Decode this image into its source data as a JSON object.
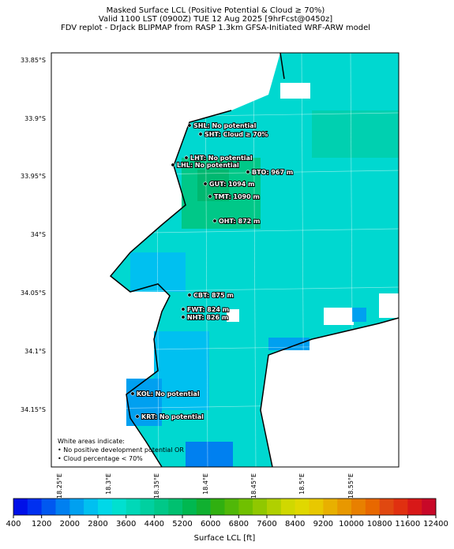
{
  "header": {
    "title": [
      "Masked Surface LCL (Positive Potential & Cloud ≥ 70%)",
      "Valid 1100 LST (0900Z) TUE 12 Aug 2025 [9hrFcst@0450z]",
      "FDV replot - DrJack BLIPMAP from RASP 1.3km GFSA-Initiated WRF-ARW model"
    ]
  },
  "map": {
    "lat_labels": [
      "33.85°S",
      "33.9°S",
      "33.95°S",
      "34°S",
      "34.05°S",
      "34.1°S",
      "34.15°S"
    ],
    "lon_labels": [
      "18.25°E",
      "18.3°E",
      "18.35°E",
      "18.4°E",
      "18.45°E",
      "18.5°E",
      "18.55°E"
    ],
    "stations": [
      "SHL: No potential",
      "SHT: Cloud ≥ 70%",
      "LHT: No potential",
      "LHL: No potential",
      "BTO: 967 m",
      "GUT: 1094 m",
      "TMT: 1090 m",
      "OHT: 872 m",
      "CBT: 875 m",
      "FWT: 824 m",
      "NHT: 826 m",
      "KOL: No potential",
      "KRT: No potential"
    ],
    "note": [
      "White areas indicate:",
      "• No positive development potential OR",
      "• Cloud percentage < 70%"
    ]
  },
  "colorbar": {
    "label": "Surface LCL [ft]",
    "lim": [
      400,
      12400
    ],
    "ticks": [
      400,
      1200,
      2000,
      2800,
      3600,
      4400,
      5200,
      6000,
      6800,
      7600,
      8400,
      9200,
      10000,
      10800,
      11600,
      12400
    ],
    "colors": [
      "#0010e8",
      "#0030f0",
      "#0058f0",
      "#0080f0",
      "#00a0f0",
      "#00c0f0",
      "#00d8e8",
      "#00e0d0",
      "#00d8b8",
      "#00d0a0",
      "#00c888",
      "#00c070",
      "#00b850",
      "#10b030",
      "#30b010",
      "#50b808",
      "#70c000",
      "#90c800",
      "#b0d000",
      "#d0d800",
      "#e0d800",
      "#e8c800",
      "#e8b000",
      "#e89800",
      "#e88000",
      "#e86800",
      "#e04810",
      "#e03010",
      "#d81818",
      "#c80828"
    ]
  }
}
